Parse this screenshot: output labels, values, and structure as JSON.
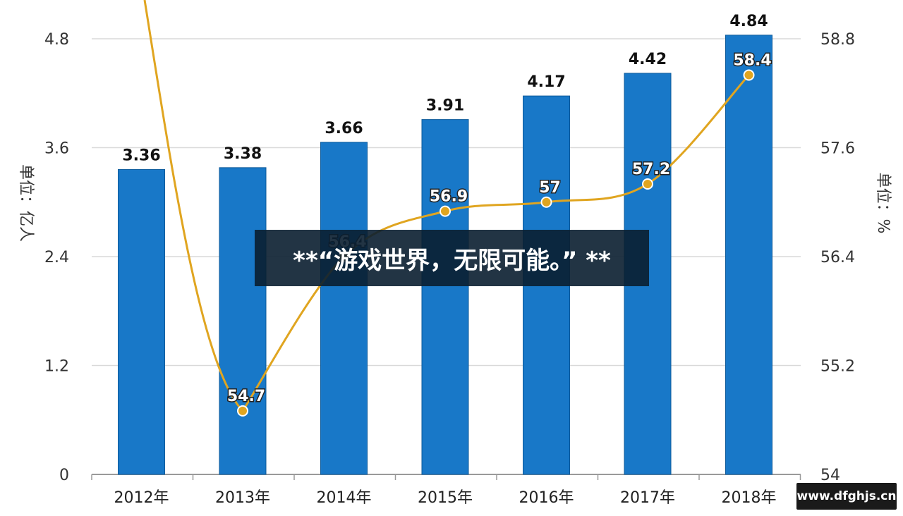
{
  "chart_data": {
    "type": "bar",
    "categories": [
      "2012年",
      "2013年",
      "2014年",
      "2015年",
      "2016年",
      "2017年",
      "2018年"
    ],
    "series": [
      {
        "type": "bar",
        "axis": "left",
        "values": [
          3.36,
          3.38,
          3.66,
          3.91,
          4.17,
          4.42,
          4.84
        ],
        "labels": [
          "3.36",
          "3.38",
          "3.66",
          "3.91",
          "4.17",
          "4.42",
          "4.84"
        ],
        "color": "#1878c8"
      },
      {
        "type": "line",
        "axis": "right",
        "values": [
          null,
          54.7,
          56.4,
          56.9,
          57.0,
          57.2,
          58.4
        ],
        "labels": [
          "",
          "54.7",
          "56.4",
          "56.9",
          "57",
          "57.2",
          "58.4"
        ],
        "color": "#e0a520"
      }
    ],
    "ylabel": "单位：亿人",
    "y2label": "单位：%",
    "ylim": [
      0,
      4.8
    ],
    "y2lim": [
      54,
      58.8
    ],
    "yticks": [
      "0",
      "1.2",
      "2.4",
      "3.6",
      "4.8"
    ],
    "y2ticks": [
      "54",
      "55.2",
      "56.4",
      "57.6",
      "58.8"
    ],
    "grid": true,
    "legend": "none"
  },
  "banner": {
    "text": "**“游戏世界，无限可能。” **"
  },
  "site_tag": {
    "text": "www.dfghjs.cn"
  }
}
